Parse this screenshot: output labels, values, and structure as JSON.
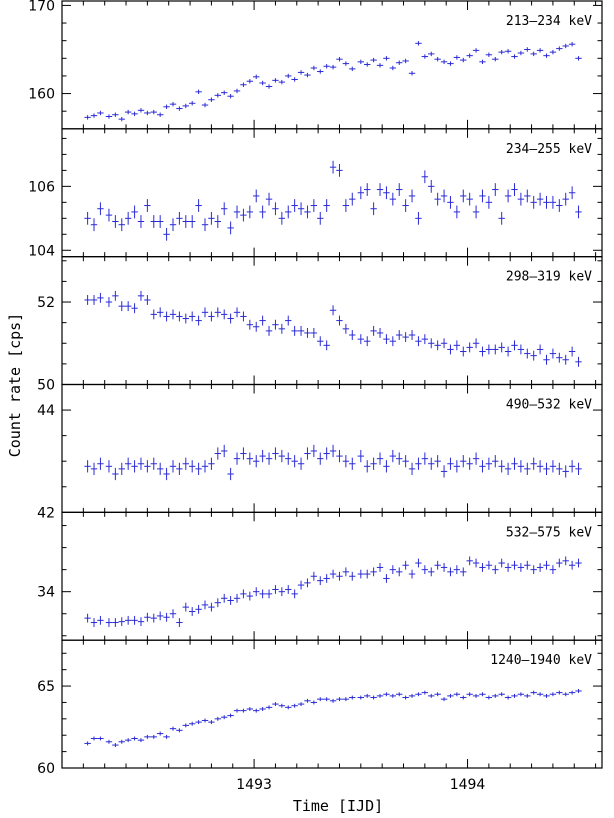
{
  "chart_data": {
    "type": "scatter",
    "xlabel": "Time [IJD]",
    "ylabel": "Count rate [cps]",
    "x_ticks": [
      1493,
      1494
    ],
    "xlim": [
      1492.1,
      1494.63
    ],
    "color": "#2b2bd6",
    "panels": [
      {
        "label": "213–234 keV",
        "ylim": [
          156,
          170.5
        ],
        "yticks": [
          160,
          170
        ],
        "y_error": 0.25,
        "x": [
          1492.22,
          1492.25,
          1492.28,
          1492.32,
          1492.35,
          1492.38,
          1492.41,
          1492.44,
          1492.47,
          1492.5,
          1492.53,
          1492.56,
          1492.59,
          1492.62,
          1492.65,
          1492.68,
          1492.71,
          1492.74,
          1492.77,
          1492.8,
          1492.83,
          1492.86,
          1492.89,
          1492.92,
          1492.95,
          1492.98,
          1493.01,
          1493.04,
          1493.07,
          1493.1,
          1493.13,
          1493.16,
          1493.19,
          1493.22,
          1493.25,
          1493.28,
          1493.31,
          1493.34,
          1493.37,
          1493.4,
          1493.43,
          1493.46,
          1493.5,
          1493.53,
          1493.56,
          1493.59,
          1493.62,
          1493.65,
          1493.68,
          1493.71,
          1493.74,
          1493.77,
          1493.8,
          1493.83,
          1493.86,
          1493.89,
          1493.92,
          1493.95,
          1493.98,
          1494.01,
          1494.04,
          1494.07,
          1494.1,
          1494.13,
          1494.16,
          1494.19,
          1494.22,
          1494.25,
          1494.28,
          1494.31,
          1494.34,
          1494.37,
          1494.4,
          1494.43,
          1494.46,
          1494.49,
          1494.52
        ],
        "y": [
          157.3,
          157.5,
          157.8,
          157.4,
          157.6,
          157.1,
          157.9,
          157.7,
          158.1,
          157.8,
          157.9,
          157.6,
          158.5,
          158.8,
          158.3,
          158.6,
          158.9,
          160.2,
          158.7,
          159.3,
          159.8,
          160.1,
          159.7,
          160.3,
          161.0,
          161.4,
          161.9,
          161.2,
          160.8,
          161.5,
          161.3,
          162.0,
          161.6,
          162.4,
          162.1,
          162.9,
          162.5,
          163.1,
          163.0,
          163.9,
          163.4,
          162.8,
          163.6,
          163.3,
          163.8,
          163.2,
          164.0,
          162.9,
          163.5,
          163.7,
          162.3,
          165.7,
          164.2,
          164.5,
          163.9,
          163.6,
          163.4,
          164.1,
          163.8,
          164.3,
          164.9,
          163.6,
          164.4,
          163.9,
          164.7,
          164.8,
          164.2,
          164.6,
          165.0,
          164.5,
          164.9,
          164.3,
          164.7,
          165.1,
          165.4,
          165.6,
          164.0
        ]
      },
      {
        "label": "234–255 keV",
        "ylim": [
          103.8,
          107.8
        ],
        "yticks": [
          104,
          106
        ],
        "y_error": 0.2,
        "x": [
          1492.22,
          1492.25,
          1492.28,
          1492.32,
          1492.35,
          1492.38,
          1492.41,
          1492.44,
          1492.47,
          1492.5,
          1492.53,
          1492.56,
          1492.59,
          1492.62,
          1492.65,
          1492.68,
          1492.71,
          1492.74,
          1492.77,
          1492.8,
          1492.83,
          1492.86,
          1492.89,
          1492.92,
          1492.95,
          1492.98,
          1493.01,
          1493.04,
          1493.07,
          1493.1,
          1493.13,
          1493.16,
          1493.19,
          1493.22,
          1493.25,
          1493.28,
          1493.31,
          1493.34,
          1493.37,
          1493.4,
          1493.43,
          1493.46,
          1493.5,
          1493.53,
          1493.56,
          1493.59,
          1493.62,
          1493.65,
          1493.68,
          1493.71,
          1493.74,
          1493.77,
          1493.8,
          1493.83,
          1493.86,
          1493.89,
          1493.92,
          1493.95,
          1493.98,
          1494.01,
          1494.04,
          1494.07,
          1494.1,
          1494.13,
          1494.16,
          1494.19,
          1494.22,
          1494.25,
          1494.28,
          1494.31,
          1494.34,
          1494.37,
          1494.4,
          1494.43,
          1494.46,
          1494.49,
          1494.52
        ],
        "y": [
          105.0,
          104.8,
          105.3,
          105.1,
          104.9,
          104.8,
          105.0,
          105.2,
          104.9,
          105.4,
          104.9,
          104.9,
          104.5,
          104.8,
          105.0,
          104.9,
          104.9,
          105.4,
          104.8,
          105.0,
          104.9,
          105.3,
          104.7,
          105.2,
          105.1,
          105.2,
          105.7,
          105.2,
          105.6,
          105.3,
          105.0,
          105.2,
          105.4,
          105.3,
          105.2,
          105.4,
          105.0,
          105.4,
          106.6,
          106.5,
          105.4,
          105.6,
          105.8,
          105.9,
          105.3,
          105.9,
          105.8,
          105.6,
          105.9,
          105.4,
          105.7,
          105.0,
          106.3,
          106.0,
          105.6,
          105.7,
          105.5,
          105.2,
          105.7,
          105.6,
          105.2,
          105.7,
          105.5,
          105.9,
          105.0,
          105.7,
          105.9,
          105.6,
          105.7,
          105.5,
          105.6,
          105.5,
          105.5,
          105.4,
          105.6,
          105.8,
          105.2
        ]
      },
      {
        "label": "298–319 keV",
        "ylim": [
          50,
          53.1
        ],
        "yticks": [
          50,
          52
        ],
        "y_error": 0.12,
        "x": [
          1492.22,
          1492.25,
          1492.28,
          1492.32,
          1492.35,
          1492.38,
          1492.41,
          1492.44,
          1492.47,
          1492.5,
          1492.53,
          1492.56,
          1492.59,
          1492.62,
          1492.65,
          1492.68,
          1492.71,
          1492.74,
          1492.77,
          1492.8,
          1492.83,
          1492.86,
          1492.89,
          1492.92,
          1492.95,
          1492.98,
          1493.01,
          1493.04,
          1493.07,
          1493.1,
          1493.13,
          1493.16,
          1493.19,
          1493.22,
          1493.25,
          1493.28,
          1493.31,
          1493.34,
          1493.37,
          1493.4,
          1493.43,
          1493.46,
          1493.5,
          1493.53,
          1493.56,
          1493.59,
          1493.62,
          1493.65,
          1493.68,
          1493.71,
          1493.74,
          1493.77,
          1493.8,
          1493.83,
          1493.86,
          1493.89,
          1493.92,
          1493.95,
          1493.98,
          1494.01,
          1494.04,
          1494.07,
          1494.1,
          1494.13,
          1494.16,
          1494.19,
          1494.22,
          1494.25,
          1494.28,
          1494.31,
          1494.34,
          1494.37,
          1494.4,
          1494.43,
          1494.46,
          1494.49,
          1494.52
        ],
        "y": [
          52.05,
          52.05,
          52.1,
          52.0,
          52.15,
          51.9,
          51.9,
          51.85,
          52.15,
          52.05,
          51.7,
          51.75,
          51.65,
          51.7,
          51.65,
          51.6,
          51.65,
          51.55,
          51.75,
          51.65,
          51.75,
          51.7,
          51.6,
          51.75,
          51.65,
          51.45,
          51.4,
          51.55,
          51.3,
          51.45,
          51.35,
          51.55,
          51.3,
          51.3,
          51.25,
          51.25,
          51.05,
          50.95,
          51.8,
          51.55,
          51.35,
          51.2,
          51.1,
          51.05,
          51.3,
          51.25,
          51.1,
          51.05,
          51.2,
          51.15,
          51.2,
          51.05,
          51.1,
          51.0,
          50.95,
          51.0,
          50.85,
          50.95,
          50.8,
          50.9,
          51.0,
          50.8,
          50.85,
          50.85,
          50.9,
          50.8,
          50.95,
          50.85,
          50.75,
          50.7,
          50.85,
          50.6,
          50.75,
          50.65,
          50.6,
          50.8,
          50.55
        ]
      },
      {
        "label": "490–532 keV",
        "ylim": [
          42,
          44.5
        ],
        "yticks": [
          42,
          44
        ],
        "y_error": 0.12,
        "x": [
          1492.22,
          1492.25,
          1492.28,
          1492.32,
          1492.35,
          1492.38,
          1492.41,
          1492.44,
          1492.47,
          1492.5,
          1492.53,
          1492.56,
          1492.59,
          1492.62,
          1492.65,
          1492.68,
          1492.71,
          1492.74,
          1492.77,
          1492.8,
          1492.83,
          1492.86,
          1492.89,
          1492.92,
          1492.95,
          1492.98,
          1493.01,
          1493.04,
          1493.07,
          1493.1,
          1493.13,
          1493.16,
          1493.19,
          1493.22,
          1493.25,
          1493.28,
          1493.31,
          1493.34,
          1493.37,
          1493.4,
          1493.43,
          1493.46,
          1493.5,
          1493.53,
          1493.56,
          1493.59,
          1493.62,
          1493.65,
          1493.68,
          1493.71,
          1493.74,
          1493.77,
          1493.8,
          1493.83,
          1493.86,
          1493.89,
          1493.92,
          1493.95,
          1493.98,
          1494.01,
          1494.04,
          1494.07,
          1494.1,
          1494.13,
          1494.16,
          1494.19,
          1494.22,
          1494.25,
          1494.28,
          1494.31,
          1494.34,
          1494.37,
          1494.4,
          1494.43,
          1494.46,
          1494.49,
          1494.52
        ],
        "y": [
          42.9,
          42.85,
          42.95,
          42.9,
          42.75,
          42.85,
          42.95,
          42.9,
          42.95,
          42.9,
          42.95,
          42.85,
          42.75,
          42.9,
          42.85,
          42.95,
          42.9,
          42.85,
          42.9,
          42.95,
          43.15,
          43.2,
          42.75,
          43.05,
          43.15,
          43.05,
          43.0,
          43.1,
          43.05,
          43.15,
          43.1,
          43.05,
          43.0,
          42.95,
          43.15,
          43.2,
          43.05,
          43.15,
          43.2,
          43.1,
          43.0,
          42.95,
          43.1,
          42.9,
          42.95,
          43.05,
          42.9,
          43.1,
          43.05,
          43.0,
          42.85,
          42.95,
          43.05,
          42.95,
          43.0,
          42.8,
          42.95,
          42.9,
          43.0,
          42.95,
          43.05,
          42.9,
          42.95,
          43.0,
          42.9,
          42.85,
          42.95,
          42.9,
          42.85,
          42.95,
          42.9,
          42.85,
          42.9,
          42.85,
          42.8,
          42.9,
          42.85
        ]
      },
      {
        "label": "532–575 keV",
        "ylim": [
          32.9,
          35.8
        ],
        "yticks": [
          34
        ],
        "y_error": 0.1,
        "x": [
          1492.22,
          1492.25,
          1492.28,
          1492.32,
          1492.35,
          1492.38,
          1492.41,
          1492.44,
          1492.47,
          1492.5,
          1492.53,
          1492.56,
          1492.59,
          1492.62,
          1492.65,
          1492.68,
          1492.71,
          1492.74,
          1492.77,
          1492.8,
          1492.83,
          1492.86,
          1492.89,
          1492.92,
          1492.95,
          1492.98,
          1493.01,
          1493.04,
          1493.07,
          1493.1,
          1493.13,
          1493.16,
          1493.19,
          1493.22,
          1493.25,
          1493.28,
          1493.31,
          1493.34,
          1493.37,
          1493.4,
          1493.43,
          1493.46,
          1493.5,
          1493.53,
          1493.56,
          1493.59,
          1493.62,
          1493.65,
          1493.68,
          1493.71,
          1493.74,
          1493.77,
          1493.8,
          1493.83,
          1493.86,
          1493.89,
          1493.92,
          1493.95,
          1493.98,
          1494.01,
          1494.04,
          1494.07,
          1494.1,
          1494.13,
          1494.16,
          1494.19,
          1494.22,
          1494.25,
          1494.28,
          1494.31,
          1494.34,
          1494.37,
          1494.4,
          1494.43,
          1494.46,
          1494.49,
          1494.52
        ],
        "y": [
          33.4,
          33.3,
          33.35,
          33.3,
          33.3,
          33.32,
          33.35,
          33.35,
          33.32,
          33.42,
          33.4,
          33.45,
          33.42,
          33.5,
          33.3,
          33.65,
          33.55,
          33.6,
          33.7,
          33.65,
          33.75,
          33.85,
          33.8,
          33.85,
          33.95,
          33.9,
          34.0,
          33.95,
          33.95,
          34.05,
          34.0,
          34.05,
          33.95,
          34.15,
          34.2,
          34.35,
          34.25,
          34.3,
          34.4,
          34.35,
          34.45,
          34.35,
          34.4,
          34.4,
          34.45,
          34.55,
          34.3,
          34.5,
          34.45,
          34.6,
          34.4,
          34.65,
          34.5,
          34.45,
          34.6,
          34.55,
          34.45,
          34.5,
          34.45,
          34.7,
          34.65,
          34.55,
          34.6,
          34.5,
          34.65,
          34.55,
          34.6,
          34.55,
          34.6,
          34.5,
          34.55,
          34.6,
          34.5,
          34.65,
          34.7,
          34.6,
          34.65
        ]
      },
      {
        "label": "1240–1940 keV",
        "ylim": [
          60,
          67.8
        ],
        "yticks": [
          60,
          65
        ],
        "y_error": 0.12,
        "x": [
          1492.22,
          1492.25,
          1492.28,
          1492.32,
          1492.35,
          1492.38,
          1492.41,
          1492.44,
          1492.47,
          1492.5,
          1492.53,
          1492.56,
          1492.59,
          1492.62,
          1492.65,
          1492.68,
          1492.71,
          1492.74,
          1492.77,
          1492.8,
          1492.83,
          1492.86,
          1492.89,
          1492.92,
          1492.95,
          1492.98,
          1493.01,
          1493.04,
          1493.07,
          1493.1,
          1493.13,
          1493.16,
          1493.19,
          1493.22,
          1493.25,
          1493.28,
          1493.31,
          1493.34,
          1493.37,
          1493.4,
          1493.43,
          1493.46,
          1493.5,
          1493.53,
          1493.56,
          1493.59,
          1493.62,
          1493.65,
          1493.68,
          1493.71,
          1493.74,
          1493.77,
          1493.8,
          1493.83,
          1493.86,
          1493.89,
          1493.92,
          1493.95,
          1493.98,
          1494.01,
          1494.04,
          1494.07,
          1494.1,
          1494.13,
          1494.16,
          1494.19,
          1494.22,
          1494.25,
          1494.28,
          1494.31,
          1494.34,
          1494.37,
          1494.4,
          1494.43,
          1494.46,
          1494.49,
          1494.52
        ],
        "y": [
          61.5,
          61.8,
          61.8,
          61.6,
          61.4,
          61.6,
          61.7,
          61.8,
          61.7,
          61.9,
          61.9,
          62.1,
          61.9,
          62.4,
          62.3,
          62.6,
          62.7,
          62.8,
          62.9,
          62.8,
          63.0,
          63.1,
          63.2,
          63.5,
          63.5,
          63.6,
          63.5,
          63.6,
          63.7,
          63.9,
          63.8,
          63.7,
          63.8,
          63.9,
          64.1,
          64.0,
          64.2,
          64.2,
          64.1,
          64.2,
          64.2,
          64.3,
          64.3,
          64.4,
          64.3,
          64.4,
          64.5,
          64.4,
          64.5,
          64.3,
          64.4,
          64.5,
          64.6,
          64.4,
          64.5,
          64.2,
          64.4,
          64.5,
          64.3,
          64.5,
          64.4,
          64.5,
          64.3,
          64.4,
          64.5,
          64.3,
          64.4,
          64.5,
          64.4,
          64.6,
          64.5,
          64.4,
          64.5,
          64.6,
          64.5,
          64.6,
          64.7
        ]
      }
    ]
  }
}
